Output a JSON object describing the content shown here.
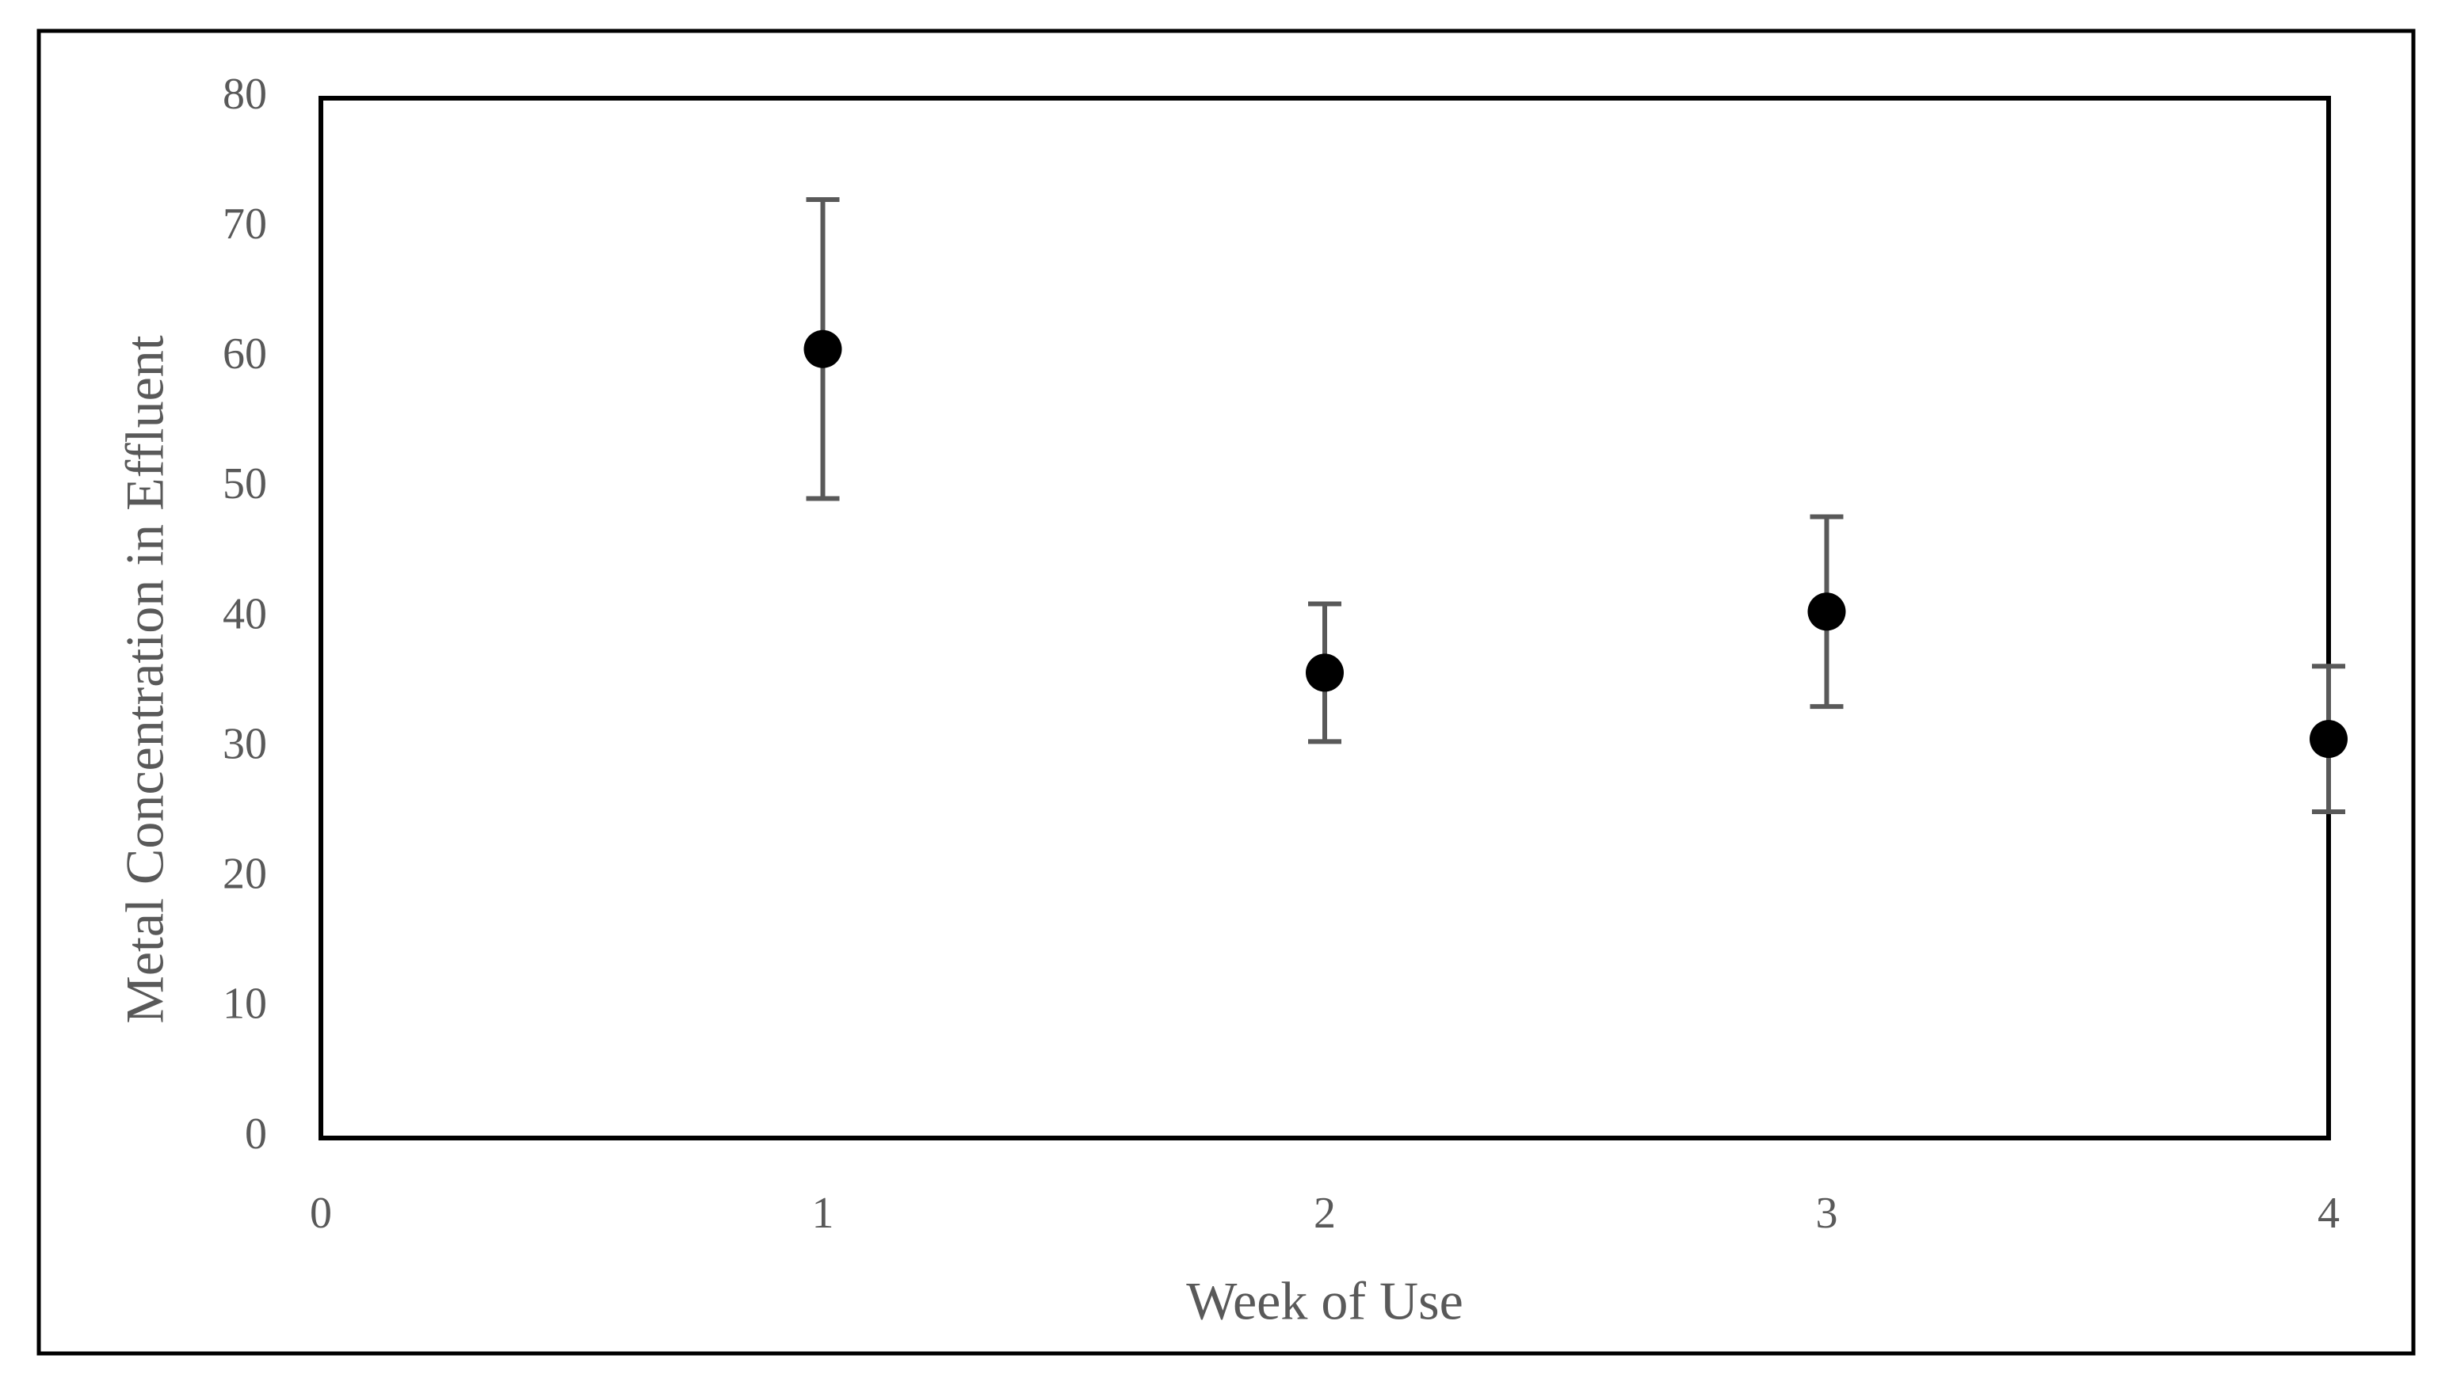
{
  "chart_data": {
    "type": "scatter",
    "xlabel": "Week of Use",
    "ylabel": "Metal Concentration in Effluent",
    "x": [
      1,
      2,
      3,
      4
    ],
    "values": [
      60.7,
      35.8,
      40.5,
      30.7
    ],
    "errors": [
      11.5,
      5.3,
      7.3,
      5.6
    ],
    "color": "#000000",
    "error_color": "#595959",
    "xlim": [
      0,
      4
    ],
    "xticks": [
      0,
      1,
      2,
      3,
      4
    ],
    "ylim": [
      0,
      80
    ],
    "yticks": [
      0,
      10,
      20,
      30,
      40,
      50,
      60,
      70,
      80
    ]
  }
}
